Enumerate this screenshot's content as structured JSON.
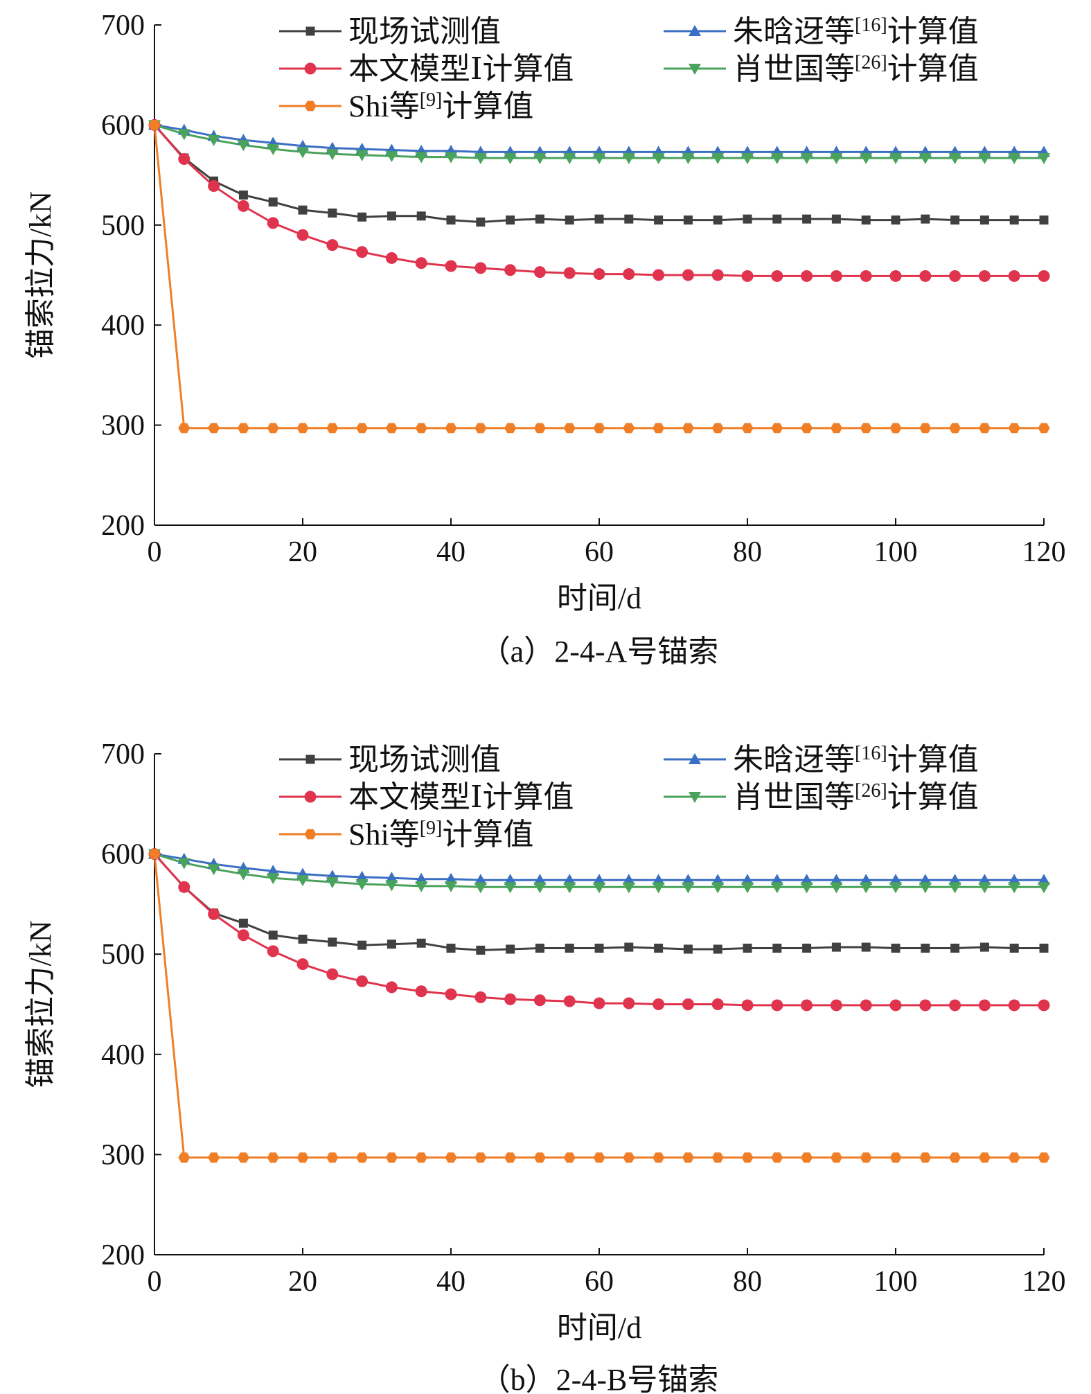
{
  "chart_data": [
    {
      "type": "line",
      "caption": "（a）2-4-A号锚索",
      "xlabel": "时间/d",
      "ylabel": "锚索拉力/kN",
      "xlim": [
        0,
        120
      ],
      "ylim": [
        200,
        700
      ],
      "xticks": [
        0,
        20,
        40,
        60,
        80,
        100,
        120
      ],
      "yticks": [
        200,
        300,
        400,
        500,
        600,
        700
      ],
      "grid": false,
      "legend_position": "top",
      "x": [
        0,
        4,
        8,
        12,
        16,
        20,
        24,
        28,
        32,
        36,
        40,
        44,
        48,
        52,
        56,
        60,
        64,
        68,
        72,
        76,
        80,
        84,
        88,
        92,
        96,
        100,
        104,
        108,
        112,
        116,
        120
      ],
      "series": [
        {
          "name": "现场试测值",
          "color": "#404040",
          "marker": "square",
          "values": [
            600,
            567,
            544,
            530,
            523,
            515,
            512,
            508,
            509,
            509,
            505,
            503,
            505,
            506,
            505,
            506,
            506,
            505,
            505,
            505,
            506,
            506,
            506,
            506,
            505,
            505,
            506,
            505,
            505,
            505,
            505
          ]
        },
        {
          "name": "朱晗迓等[16]计算值",
          "color": "#3a6fc4",
          "marker": "triangle-up",
          "values": [
            600,
            595,
            589,
            585,
            582,
            579,
            577,
            576,
            575,
            574,
            574,
            573,
            573,
            573,
            573,
            573,
            573,
            573,
            573,
            573,
            573,
            573,
            573,
            573,
            573,
            573,
            573,
            573,
            573,
            573,
            573
          ]
        },
        {
          "name": "本文模型Ⅰ计算值",
          "color": "#e0344e",
          "marker": "circle",
          "values": [
            600,
            566,
            539,
            519,
            502,
            490,
            480,
            473,
            467,
            462,
            459,
            457,
            455,
            453,
            452,
            451,
            451,
            450,
            450,
            450,
            449,
            449,
            449,
            449,
            449,
            449,
            449,
            449,
            449,
            449,
            449
          ]
        },
        {
          "name": "肖世国等[26]计算值",
          "color": "#4aa35a",
          "marker": "triangle-down",
          "values": [
            600,
            591,
            585,
            580,
            576,
            573,
            571,
            570,
            569,
            568,
            568,
            567,
            567,
            567,
            567,
            567,
            567,
            567,
            567,
            567,
            567,
            567,
            567,
            567,
            567,
            567,
            567,
            567,
            567,
            567,
            567
          ]
        },
        {
          "name": "Shi等[9]计算值",
          "color": "#f07e26",
          "marker": "hexagon",
          "values": [
            600,
            297,
            297,
            297,
            297,
            297,
            297,
            297,
            297,
            297,
            297,
            297,
            297,
            297,
            297,
            297,
            297,
            297,
            297,
            297,
            297,
            297,
            297,
            297,
            297,
            297,
            297,
            297,
            297,
            297,
            297
          ]
        }
      ]
    },
    {
      "type": "line",
      "caption": "（b）2-4-B号锚索",
      "xlabel": "时间/d",
      "ylabel": "锚索拉力/kN",
      "xlim": [
        0,
        120
      ],
      "ylim": [
        200,
        700
      ],
      "xticks": [
        0,
        20,
        40,
        60,
        80,
        100,
        120
      ],
      "yticks": [
        200,
        300,
        400,
        500,
        600,
        700
      ],
      "grid": false,
      "legend_position": "top",
      "x": [
        0,
        4,
        8,
        12,
        16,
        20,
        24,
        28,
        32,
        36,
        40,
        44,
        48,
        52,
        56,
        60,
        64,
        68,
        72,
        76,
        80,
        84,
        88,
        92,
        96,
        100,
        104,
        108,
        112,
        116,
        120
      ],
      "series": [
        {
          "name": "现场试测值",
          "color": "#404040",
          "marker": "square",
          "values": [
            600,
            567,
            541,
            531,
            519,
            515,
            512,
            509,
            510,
            511,
            506,
            504,
            505,
            506,
            506,
            506,
            507,
            506,
            505,
            505,
            506,
            506,
            506,
            507,
            507,
            506,
            506,
            506,
            507,
            506,
            506
          ]
        },
        {
          "name": "朱晗迓等[16]计算值",
          "color": "#3a6fc4",
          "marker": "triangle-up",
          "values": [
            600,
            595,
            590,
            586,
            583,
            580,
            578,
            577,
            576,
            575,
            575,
            574,
            574,
            574,
            574,
            574,
            574,
            574,
            574,
            574,
            574,
            574,
            574,
            574,
            574,
            574,
            574,
            574,
            574,
            574,
            574
          ]
        },
        {
          "name": "本文模型Ⅰ计算值",
          "color": "#e0344e",
          "marker": "circle",
          "values": [
            600,
            567,
            540,
            519,
            503,
            490,
            480,
            473,
            467,
            463,
            460,
            457,
            455,
            454,
            453,
            451,
            451,
            450,
            450,
            450,
            449,
            449,
            449,
            449,
            449,
            449,
            449,
            449,
            449,
            449,
            449
          ]
        },
        {
          "name": "肖世国等[26]计算值",
          "color": "#4aa35a",
          "marker": "triangle-down",
          "values": [
            600,
            591,
            585,
            580,
            576,
            574,
            572,
            570,
            569,
            568,
            568,
            567,
            567,
            567,
            567,
            567,
            567,
            567,
            567,
            567,
            567,
            567,
            567,
            567,
            567,
            567,
            567,
            567,
            567,
            567,
            567
          ]
        },
        {
          "name": "Shi等[9]计算值",
          "color": "#f07e26",
          "marker": "hexagon",
          "values": [
            600,
            297,
            297,
            297,
            297,
            297,
            297,
            297,
            297,
            297,
            297,
            297,
            297,
            297,
            297,
            297,
            297,
            297,
            297,
            297,
            297,
            297,
            297,
            297,
            297,
            297,
            297,
            297,
            297,
            297,
            297
          ]
        }
      ]
    }
  ]
}
